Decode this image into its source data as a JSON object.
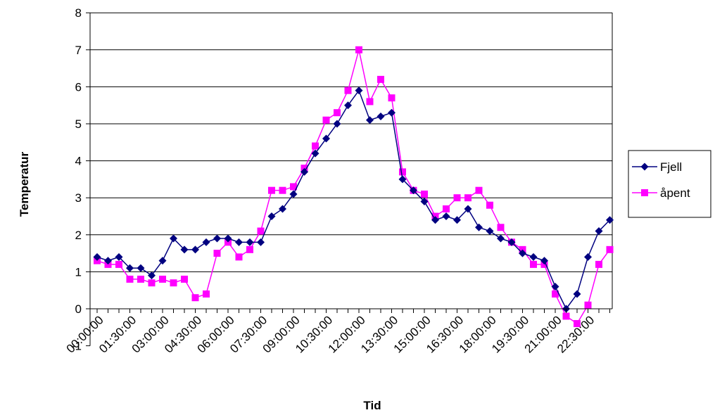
{
  "chart_data": {
    "type": "line",
    "title": "",
    "xlabel": "Tid",
    "ylabel": "Temperatur",
    "ylim": [
      -1,
      8
    ],
    "y_ticks": [
      "-1",
      "0",
      "1",
      "2",
      "3",
      "4",
      "5",
      "6",
      "7",
      "8"
    ],
    "x_tick_labels": [
      "00:00:00",
      "01:30:00",
      "03:00:00",
      "04:30:00",
      "06:00:00",
      "07:30:00",
      "09:00:00",
      "10:30:00",
      "12:00:00",
      "13:30:00",
      "15:00:00",
      "16:30:00",
      "18:00:00",
      "19:30:00",
      "21:00:00",
      "22:30:00"
    ],
    "x_interval_minutes": 30,
    "grid": "horizontal",
    "legend_position": "right",
    "series": [
      {
        "name": "Fjell",
        "color": "#000080",
        "marker": "diamond",
        "values": [
          1.4,
          1.3,
          1.4,
          1.1,
          1.1,
          0.9,
          1.3,
          1.9,
          1.6,
          1.6,
          1.8,
          1.9,
          1.9,
          1.8,
          1.8,
          1.8,
          2.5,
          2.7,
          3.1,
          3.7,
          4.2,
          4.6,
          5.0,
          5.5,
          5.9,
          5.1,
          5.2,
          5.3,
          3.5,
          3.2,
          2.9,
          2.4,
          2.5,
          2.4,
          2.7,
          2.2,
          2.1,
          1.9,
          1.8,
          1.5,
          1.4,
          1.3,
          0.6,
          0.0,
          0.4,
          1.4,
          2.1,
          2.4
        ]
      },
      {
        "name": "åpent",
        "color": "#FF00FF",
        "marker": "square",
        "values": [
          1.3,
          1.2,
          1.2,
          0.8,
          0.8,
          0.7,
          0.8,
          0.7,
          0.8,
          0.3,
          0.4,
          1.5,
          1.8,
          1.4,
          1.6,
          2.1,
          3.2,
          3.2,
          3.3,
          3.8,
          4.4,
          5.1,
          5.3,
          5.9,
          7.0,
          5.6,
          6.2,
          5.7,
          3.7,
          3.2,
          3.1,
          2.5,
          2.7,
          3.0,
          3.0,
          3.2,
          2.8,
          2.2,
          1.8,
          1.6,
          1.2,
          1.2,
          0.4,
          -0.2,
          -0.4,
          0.1,
          1.2,
          1.6
        ]
      }
    ]
  }
}
